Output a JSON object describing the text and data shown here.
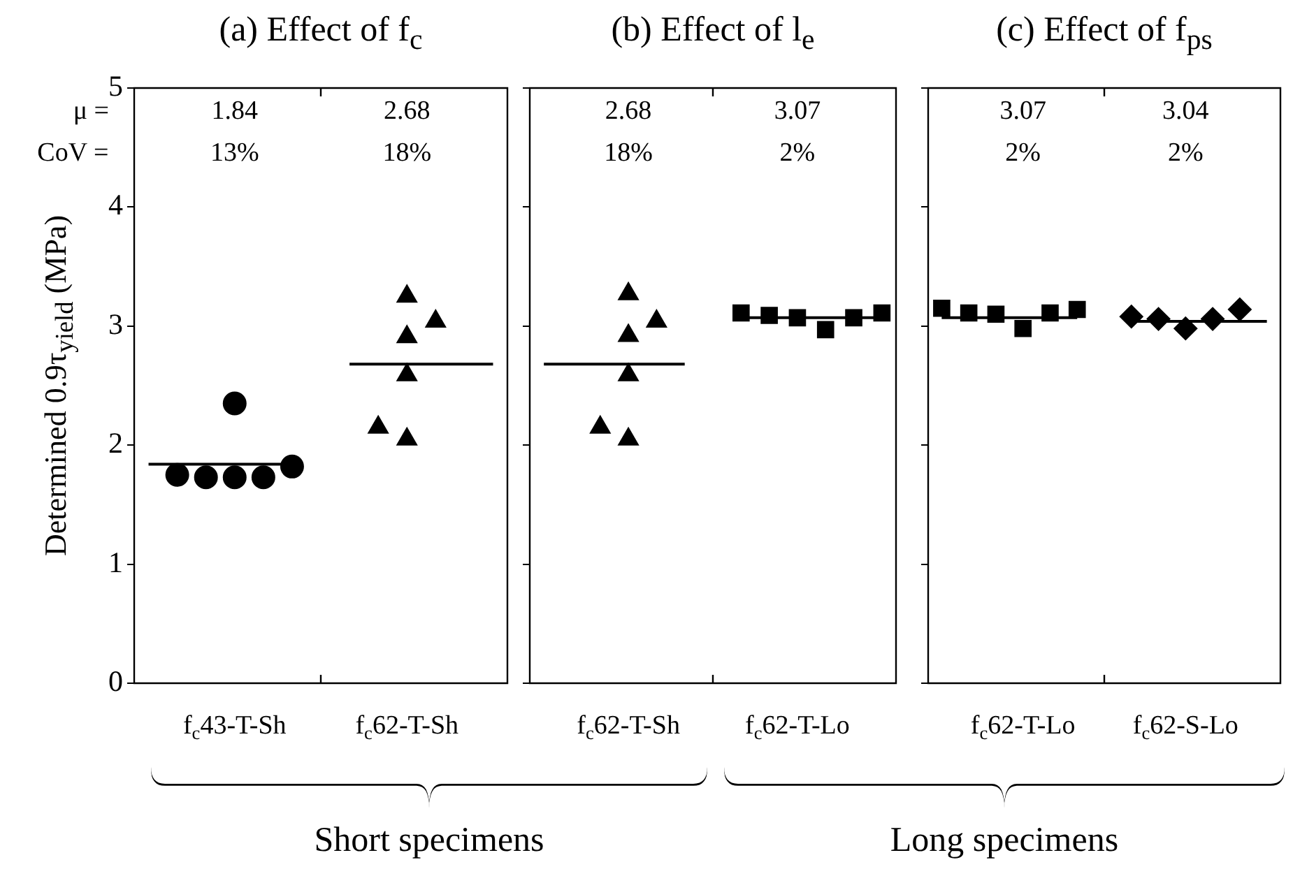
{
  "chart_data": [
    {
      "type": "scatter",
      "title": "(a) Effect of f$_{c}$",
      "ylabel": "Determined 0.9τ$_{yield}$ (MPa)",
      "categories": [
        null,
        null,
        null,
        "f$_{c}$43-T-Sh",
        null,
        null,
        null,
        null,
        null,
        "f$_{c}$62-T-Sh",
        null,
        null,
        null
      ],
      "ylim": [
        0,
        5
      ],
      "yticks": [
        0,
        1,
        2,
        3,
        4,
        5
      ],
      "series": [
        {
          "marker": "circle",
          "color": "#000000",
          "values": [
            null,
            1.75,
            1.73,
            1.73,
            1.73,
            1.82,
            null,
            null,
            null,
            null,
            null,
            null,
            null
          ]
        },
        {
          "marker": "circle",
          "color": "#000000",
          "values": [
            null,
            null,
            null,
            2.35,
            null,
            null,
            null,
            null,
            null,
            null,
            null,
            null,
            null
          ]
        },
        {
          "marker": "triangle",
          "color": "#000000",
          "values": [
            null,
            null,
            null,
            null,
            null,
            null,
            null,
            null,
            2.15,
            3.25,
            3.04,
            null,
            null
          ]
        },
        {
          "marker": "triangle",
          "color": "#000000",
          "values": [
            null,
            null,
            null,
            null,
            null,
            null,
            null,
            null,
            null,
            2.91,
            null,
            null,
            null
          ]
        },
        {
          "marker": "triangle",
          "color": "#000000",
          "values": [
            null,
            null,
            null,
            null,
            null,
            null,
            null,
            null,
            null,
            2.59,
            null,
            null,
            null
          ]
        },
        {
          "marker": "triangle",
          "color": "#000000",
          "values": [
            null,
            null,
            null,
            null,
            null,
            null,
            null,
            null,
            null,
            2.05,
            null,
            null,
            null
          ]
        },
        {
          "type": "line",
          "color": "#000000",
          "values": [
            1.84,
            1.84,
            1.84,
            1.84,
            1.84,
            1.84,
            null,
            null,
            null,
            null,
            null,
            null,
            null
          ]
        },
        {
          "type": "line",
          "color": "#000000",
          "values": [
            null,
            null,
            null,
            null,
            null,
            null,
            null,
            2.68,
            2.68,
            2.68,
            2.68,
            2.68,
            2.68
          ]
        }
      ],
      "annotations": [
        "μ =",
        "CoV =",
        "1.84",
        "13%",
        "2.68",
        "18%"
      ]
    },
    {
      "type": "scatter",
      "title": "(b) Effect of l$_{e}$",
      "tick_labels": "x",
      "categories": [
        null,
        null,
        null,
        "f$_{c}$62-T-Sh",
        null,
        null,
        null,
        null,
        null,
        "f$_{c}$62-T-Lo",
        null,
        null,
        null
      ],
      "ylim": [
        0,
        5
      ],
      "yticks": [
        0,
        1,
        2,
        3,
        4,
        5
      ],
      "series": [
        {
          "marker": "triangle",
          "color": "#000000",
          "values": [
            null,
            null,
            2.15,
            3.27,
            3.04,
            null,
            null,
            null,
            null,
            null,
            null,
            null,
            null
          ]
        },
        {
          "marker": "triangle",
          "color": "#000000",
          "values": [
            null,
            null,
            null,
            2.92,
            null,
            null,
            null,
            null,
            null,
            null,
            null,
            null,
            null
          ]
        },
        {
          "marker": "triangle",
          "color": "#000000",
          "values": [
            null,
            null,
            null,
            2.59,
            null,
            null,
            null,
            null,
            null,
            null,
            null,
            null,
            null
          ]
        },
        {
          "marker": "triangle",
          "color": "#000000",
          "values": [
            null,
            null,
            null,
            2.05,
            null,
            null,
            null,
            null,
            null,
            null,
            null,
            null,
            null
          ]
        },
        {
          "marker": "square",
          "color": "#000000",
          "values": [
            null,
            null,
            null,
            null,
            null,
            null,
            null,
            3.11,
            3.09,
            3.07,
            2.97,
            3.07,
            3.11
          ]
        },
        {
          "type": "line",
          "color": "#000000",
          "values": [
            2.68,
            2.68,
            2.68,
            2.68,
            2.68,
            2.68,
            null,
            null,
            null,
            null,
            null,
            null,
            null
          ]
        },
        {
          "type": "line",
          "color": "#000000",
          "values": [
            null,
            null,
            null,
            null,
            null,
            null,
            null,
            3.07,
            3.07,
            3.07,
            3.07,
            3.07,
            3.07
          ]
        }
      ],
      "annotations": [
        "2.68",
        "18%",
        "3.07",
        "2%"
      ]
    },
    {
      "type": "scatter",
      "title": "(c) Effect of f$_{ps}$",
      "tick_labels": "x",
      "categories": [
        null,
        null,
        null,
        "f$_{c}$62-T-Lo",
        null,
        null,
        null,
        null,
        null,
        "f$_{c}$62-S-Lo",
        null,
        null,
        null
      ],
      "ylim": [
        0,
        5
      ],
      "yticks": [
        0,
        1,
        2,
        3,
        4,
        5
      ],
      "series": [
        {
          "marker": "square",
          "color": "#000000",
          "values": [
            3.15,
            3.11,
            3.1,
            2.98,
            3.11,
            3.14,
            null,
            null,
            null,
            null,
            null,
            null,
            null
          ]
        },
        {
          "marker": "diamond",
          "color": "#000000",
          "values": [
            null,
            null,
            null,
            null,
            null,
            null,
            null,
            3.08,
            3.06,
            2.98,
            3.06,
            3.14,
            null
          ]
        },
        {
          "type": "line",
          "color": "#000000",
          "values": [
            3.07,
            3.07,
            3.07,
            3.07,
            3.07,
            3.07,
            null,
            null,
            null,
            null,
            null,
            null,
            null
          ]
        },
        {
          "type": "line",
          "color": "#000000",
          "values": [
            null,
            null,
            null,
            null,
            null,
            null,
            null,
            3.04,
            3.04,
            3.04,
            3.04,
            3.04,
            3.04
          ]
        }
      ],
      "annotations": [
        "3.07",
        "2%",
        "3.04",
        "2%"
      ]
    },
    {
      "type": "other",
      "annotations": [
        "Short specimens",
        "Long specimens"
      ]
    }
  ]
}
